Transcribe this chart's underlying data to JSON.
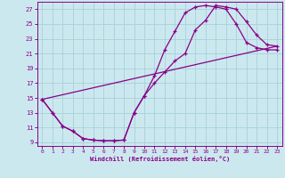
{
  "xlabel": "Windchill (Refroidissement éolien,°C)",
  "bg_color": "#cce8ef",
  "grid_color": "#aad4dc",
  "line_color": "#880088",
  "xlim": [
    -0.5,
    23.5
  ],
  "ylim": [
    8.5,
    28.0
  ],
  "xticks": [
    0,
    1,
    2,
    3,
    4,
    5,
    6,
    7,
    8,
    9,
    10,
    11,
    12,
    13,
    14,
    15,
    16,
    17,
    18,
    19,
    20,
    21,
    22,
    23
  ],
  "yticks": [
    9,
    11,
    13,
    15,
    17,
    19,
    21,
    23,
    25,
    27
  ],
  "line1_x": [
    0,
    1,
    2,
    3,
    4,
    5,
    6,
    7,
    8,
    9,
    10,
    11,
    12,
    13,
    14,
    15,
    16,
    17,
    18,
    19,
    20,
    21,
    22,
    23
  ],
  "line1_y": [
    14.8,
    13.0,
    11.2,
    10.5,
    9.5,
    9.3,
    9.2,
    9.2,
    9.3,
    13.0,
    15.3,
    17.0,
    18.5,
    20.0,
    21.0,
    24.2,
    25.5,
    27.5,
    27.3,
    27.0,
    25.3,
    23.5,
    22.2,
    22.0
  ],
  "line2_x": [
    0,
    1,
    2,
    3,
    4,
    5,
    6,
    7,
    8,
    9,
    10,
    11,
    12,
    13,
    14,
    15,
    16,
    17,
    18,
    19,
    20,
    21,
    22,
    23
  ],
  "line2_y": [
    14.8,
    13.0,
    11.2,
    10.5,
    9.5,
    9.3,
    9.2,
    9.2,
    9.3,
    13.0,
    15.3,
    18.0,
    21.5,
    24.0,
    26.5,
    27.3,
    27.5,
    27.3,
    27.0,
    25.0,
    22.5,
    21.8,
    21.5,
    21.5
  ],
  "line3_x": [
    0,
    23
  ],
  "line3_y": [
    14.8,
    22.0
  ]
}
